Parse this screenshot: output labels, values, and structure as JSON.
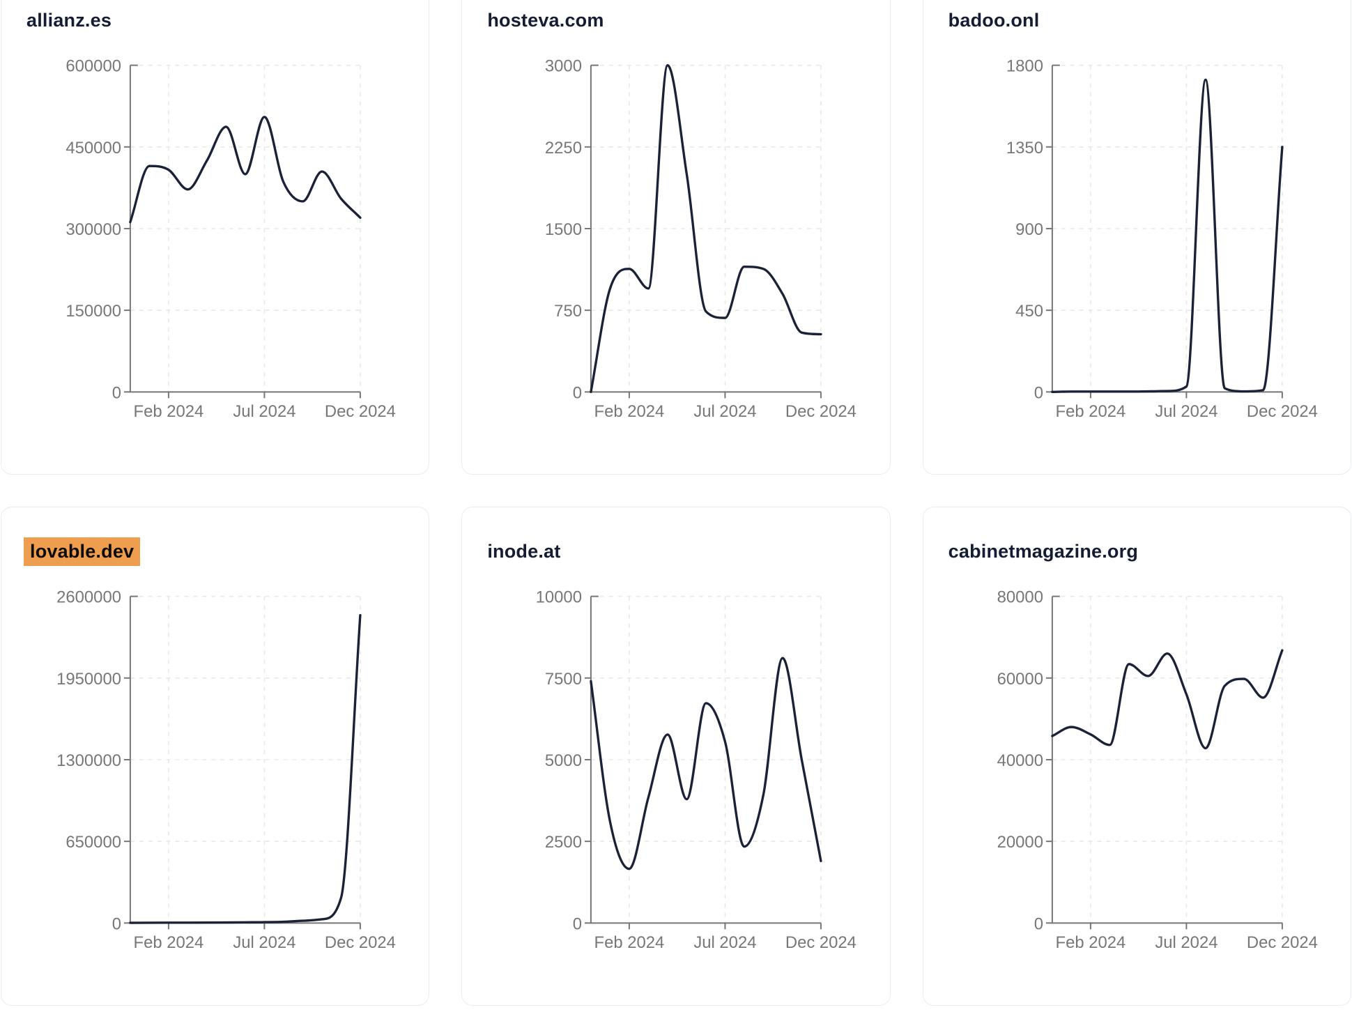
{
  "page": {
    "background": "#ffffff"
  },
  "style": {
    "line_color": "#1b2238",
    "axis_color": "#767676",
    "tick_label_color": "#757779",
    "grid_color": "#e8e8eb",
    "title_color": "#151d35",
    "card_border_color": "#e9ecf4",
    "highlight_bg": "#ef9d4e",
    "highlight_text": "#0c0c0c"
  },
  "chart_config": {
    "x_months": [
      "Dec 2023",
      "Jan 2024",
      "Feb 2024",
      "Mar 2024",
      "Apr 2024",
      "May 2024",
      "Jun 2024",
      "Jul 2024",
      "Aug 2024",
      "Sep 2024",
      "Oct 2024",
      "Nov 2024",
      "Dec 2024"
    ],
    "xtick_labels": [
      "Feb 2024",
      "Jul 2024",
      "Dec 2024"
    ],
    "xtick_month_indices": [
      2,
      7,
      12
    ],
    "grid_style": "dashed",
    "legend": "none"
  },
  "chart_data": [
    {
      "type": "line",
      "title": "allianz.es",
      "title_highlighted": false,
      "x": [
        "Dec 2023",
        "Jan 2024",
        "Feb 2024",
        "Mar 2024",
        "Apr 2024",
        "May 2024",
        "Jun 2024",
        "Jul 2024",
        "Aug 2024",
        "Sep 2024",
        "Oct 2024",
        "Nov 2024",
        "Dec 2024"
      ],
      "values": [
        312000,
        415000,
        408000,
        372000,
        425000,
        487000,
        400000,
        505000,
        385000,
        350000,
        405000,
        355000,
        320000
      ],
      "ylim": [
        0,
        600000
      ],
      "yticks": [
        0,
        150000,
        300000,
        450000,
        600000
      ],
      "xticks": [
        "Feb 2024",
        "Jul 2024",
        "Dec 2024"
      ]
    },
    {
      "type": "line",
      "title": "hosteva.com",
      "title_highlighted": false,
      "x": [
        "Dec 2023",
        "Jan 2024",
        "Feb 2024",
        "Mar 2024",
        "Apr 2024",
        "May 2024",
        "Jun 2024",
        "Jul 2024",
        "Aug 2024",
        "Sep 2024",
        "Oct 2024",
        "Nov 2024",
        "Dec 2024"
      ],
      "values": [
        0,
        950,
        1130,
        950,
        3000,
        2000,
        740,
        680,
        1150,
        1130,
        900,
        545,
        530
      ],
      "ylim": [
        0,
        3000
      ],
      "yticks": [
        0,
        750,
        1500,
        2250,
        3000
      ],
      "xticks": [
        "Feb 2024",
        "Jul 2024",
        "Dec 2024"
      ]
    },
    {
      "type": "line",
      "title": "badoo.onl",
      "title_highlighted": false,
      "x": [
        "Dec 2023",
        "Jan 2024",
        "Feb 2024",
        "Mar 2024",
        "Apr 2024",
        "May 2024",
        "Jun 2024",
        "Jul 2024",
        "Aug 2024",
        "Sep 2024",
        "Oct 2024",
        "Nov 2024",
        "Dec 2024"
      ],
      "values": [
        0,
        2,
        2,
        2,
        2,
        3,
        5,
        30,
        1720,
        20,
        3,
        10,
        1350
      ],
      "ylim": [
        0,
        1800
      ],
      "yticks": [
        0,
        450,
        900,
        1350,
        1800
      ],
      "xticks": [
        "Feb 2024",
        "Jul 2024",
        "Dec 2024"
      ]
    },
    {
      "type": "line",
      "title": "lovable.dev",
      "title_highlighted": true,
      "x": [
        "Dec 2023",
        "Jan 2024",
        "Feb 2024",
        "Mar 2024",
        "Apr 2024",
        "May 2024",
        "Jun 2024",
        "Jul 2024",
        "Aug 2024",
        "Sep 2024",
        "Oct 2024",
        "Nov 2024",
        "Dec 2024"
      ],
      "values": [
        1500,
        2000,
        2500,
        3000,
        3500,
        4500,
        5500,
        7000,
        10000,
        18000,
        30000,
        200000,
        2450000
      ],
      "ylim": [
        0,
        2600000
      ],
      "yticks": [
        0,
        650000,
        1300000,
        1950000,
        2600000
      ],
      "xticks": [
        "Feb 2024",
        "Jul 2024",
        "Dec 2024"
      ]
    },
    {
      "type": "line",
      "title": "inode.at",
      "title_highlighted": false,
      "x": [
        "Dec 2023",
        "Jan 2024",
        "Feb 2024",
        "Mar 2024",
        "Apr 2024",
        "May 2024",
        "Jun 2024",
        "Jul 2024",
        "Aug 2024",
        "Sep 2024",
        "Oct 2024",
        "Nov 2024",
        "Dec 2024"
      ],
      "values": [
        7400,
        3100,
        1660,
        3850,
        5770,
        3790,
        6730,
        5550,
        2340,
        3930,
        8110,
        5000,
        1900
      ],
      "ylim": [
        0,
        10000
      ],
      "yticks": [
        0,
        2500,
        5000,
        7500,
        10000
      ],
      "xticks": [
        "Feb 2024",
        "Jul 2024",
        "Dec 2024"
      ]
    },
    {
      "type": "line",
      "title": "cabinetmagazine.org",
      "title_highlighted": false,
      "x": [
        "Dec 2023",
        "Jan 2024",
        "Feb 2024",
        "Mar 2024",
        "Apr 2024",
        "May 2024",
        "Jun 2024",
        "Jul 2024",
        "Aug 2024",
        "Sep 2024",
        "Oct 2024",
        "Nov 2024",
        "Dec 2024"
      ],
      "values": [
        45800,
        48000,
        46200,
        43600,
        63400,
        60500,
        66000,
        56000,
        42800,
        58100,
        59800,
        55200,
        66800
      ],
      "ylim": [
        0,
        80000
      ],
      "yticks": [
        0,
        20000,
        40000,
        60000,
        80000
      ],
      "xticks": [
        "Feb 2024",
        "Jul 2024",
        "Dec 2024"
      ]
    }
  ]
}
